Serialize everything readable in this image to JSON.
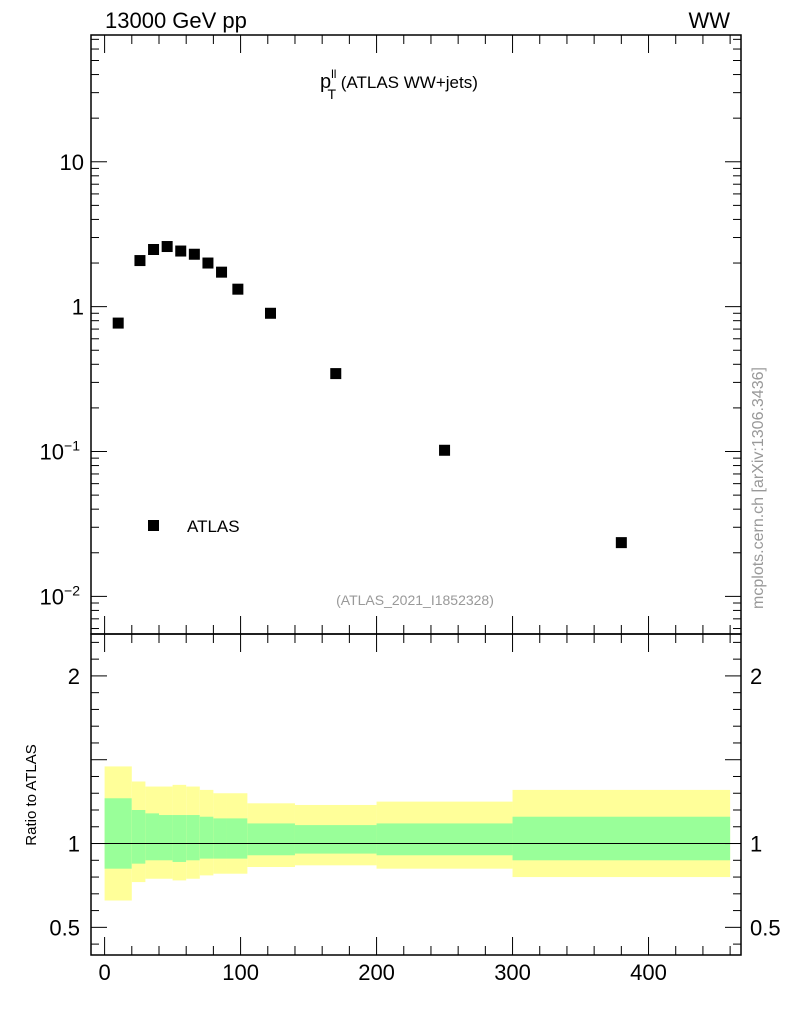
{
  "header": {
    "energy_label": "13000 GeV pp",
    "process_label": "WW"
  },
  "side_label": "mcplots.cern.ch [arXiv:1306.3436]",
  "analysis_label": "(ATLAS_2021_I1852328)",
  "colors": {
    "band_outer": "#ffff99",
    "band_inner": "#99ff99",
    "marker": "#000000",
    "ref_line": "#000000"
  },
  "chart_data": [
    {
      "type": "scatter",
      "title_main": "p",
      "title_sup": "ll",
      "title_sub": "T",
      "title_rest": " (ATLAS WW+jets)",
      "log_y": true,
      "xlim": [
        -10,
        468
      ],
      "ylim": [
        0.0055,
        75
      ],
      "x": [
        10,
        26,
        36,
        46,
        56,
        66,
        76,
        86,
        98,
        122,
        170,
        250,
        380
      ],
      "y": [
        0.77,
        2.08,
        2.48,
        2.6,
        2.42,
        2.3,
        2.0,
        1.73,
        1.32,
        0.9,
        0.345,
        0.102,
        0.0235
      ],
      "legend": {
        "label": "ATLAS",
        "position": "bottom-left"
      },
      "y_tick_labels": [
        {
          "value": 10,
          "label": "10"
        },
        {
          "value": 1,
          "label": "1"
        },
        {
          "value": 0.1,
          "label": "10",
          "exp": "−1"
        },
        {
          "value": 0.01,
          "label": "10",
          "exp": "−2"
        }
      ]
    },
    {
      "type": "area",
      "ylabel": "Ratio to ATLAS",
      "xlim": [
        -10,
        468
      ],
      "ylim": [
        0.335,
        2.25
      ],
      "bins": [
        {
          "lo": 0,
          "hi": 20,
          "outer": [
            0.66,
            1.46
          ],
          "inner": [
            0.85,
            1.27
          ]
        },
        {
          "lo": 20,
          "hi": 30,
          "outer": [
            0.77,
            1.37
          ],
          "inner": [
            0.88,
            1.2
          ]
        },
        {
          "lo": 30,
          "hi": 40,
          "outer": [
            0.79,
            1.34
          ],
          "inner": [
            0.9,
            1.18
          ]
        },
        {
          "lo": 40,
          "hi": 50,
          "outer": [
            0.79,
            1.34
          ],
          "inner": [
            0.9,
            1.17
          ]
        },
        {
          "lo": 50,
          "hi": 60,
          "outer": [
            0.78,
            1.35
          ],
          "inner": [
            0.89,
            1.17
          ]
        },
        {
          "lo": 60,
          "hi": 70,
          "outer": [
            0.79,
            1.34
          ],
          "inner": [
            0.9,
            1.17
          ]
        },
        {
          "lo": 70,
          "hi": 80,
          "outer": [
            0.81,
            1.32
          ],
          "inner": [
            0.91,
            1.16
          ]
        },
        {
          "lo": 80,
          "hi": 90,
          "outer": [
            0.82,
            1.3
          ],
          "inner": [
            0.91,
            1.15
          ]
        },
        {
          "lo": 90,
          "hi": 105,
          "outer": [
            0.82,
            1.3
          ],
          "inner": [
            0.91,
            1.15
          ]
        },
        {
          "lo": 105,
          "hi": 140,
          "outer": [
            0.86,
            1.24
          ],
          "inner": [
            0.93,
            1.12
          ]
        },
        {
          "lo": 140,
          "hi": 200,
          "outer": [
            0.87,
            1.23
          ],
          "inner": [
            0.94,
            1.11
          ]
        },
        {
          "lo": 200,
          "hi": 300,
          "outer": [
            0.85,
            1.25
          ],
          "inner": [
            0.93,
            1.12
          ]
        },
        {
          "lo": 300,
          "hi": 460,
          "outer": [
            0.8,
            1.32
          ],
          "inner": [
            0.9,
            1.16
          ]
        }
      ],
      "ref_value": 1,
      "x_ticks": [
        0,
        100,
        200,
        300,
        400
      ],
      "y_tick_labels": [
        {
          "value": 2,
          "label": "2"
        },
        {
          "value": 1,
          "label": "1"
        },
        {
          "value": 0.5,
          "label": "0.5"
        }
      ]
    }
  ]
}
